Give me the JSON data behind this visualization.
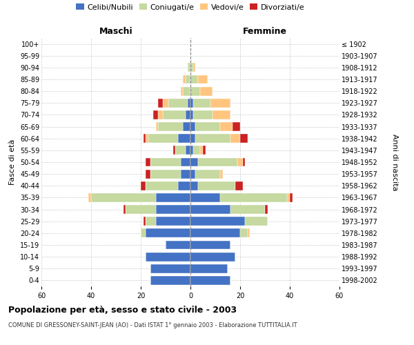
{
  "age_groups": [
    "0-4",
    "5-9",
    "10-14",
    "15-19",
    "20-24",
    "25-29",
    "30-34",
    "35-39",
    "40-44",
    "45-49",
    "50-54",
    "55-59",
    "60-64",
    "65-69",
    "70-74",
    "75-79",
    "80-84",
    "85-89",
    "90-94",
    "95-99",
    "100+"
  ],
  "birth_years": [
    "1998-2002",
    "1993-1997",
    "1988-1992",
    "1983-1987",
    "1978-1982",
    "1973-1977",
    "1968-1972",
    "1963-1967",
    "1958-1962",
    "1953-1957",
    "1948-1952",
    "1943-1947",
    "1938-1942",
    "1933-1937",
    "1928-1932",
    "1923-1927",
    "1918-1922",
    "1913-1917",
    "1908-1912",
    "1903-1907",
    "≤ 1902"
  ],
  "colors": {
    "celibe": "#4472c4",
    "coniugato": "#c5d9a0",
    "vedovo": "#ffc57f",
    "divorziato": "#cc2222"
  },
  "males": {
    "celibe": [
      16,
      16,
      18,
      10,
      18,
      14,
      14,
      14,
      5,
      4,
      4,
      2,
      5,
      3,
      2,
      1,
      0,
      0,
      0,
      0,
      0
    ],
    "coniugato": [
      0,
      0,
      0,
      0,
      2,
      4,
      12,
      26,
      13,
      12,
      12,
      4,
      12,
      10,
      9,
      8,
      3,
      2,
      1,
      0,
      0
    ],
    "vedovo": [
      0,
      0,
      0,
      0,
      0,
      0,
      0,
      1,
      0,
      0,
      0,
      0,
      1,
      1,
      2,
      2,
      1,
      1,
      0,
      0,
      0
    ],
    "divorziato": [
      0,
      0,
      0,
      0,
      0,
      1,
      1,
      0,
      2,
      2,
      2,
      1,
      1,
      0,
      2,
      2,
      0,
      0,
      0,
      0,
      0
    ]
  },
  "females": {
    "nubile": [
      16,
      15,
      18,
      16,
      20,
      22,
      16,
      12,
      3,
      2,
      3,
      1,
      2,
      2,
      1,
      1,
      0,
      0,
      0,
      0,
      0
    ],
    "coniugata": [
      0,
      0,
      0,
      0,
      3,
      9,
      14,
      27,
      15,
      10,
      16,
      3,
      14,
      10,
      8,
      7,
      4,
      3,
      1,
      0,
      0
    ],
    "vedova": [
      0,
      0,
      0,
      0,
      1,
      0,
      0,
      1,
      0,
      1,
      2,
      1,
      4,
      5,
      7,
      8,
      5,
      4,
      1,
      0,
      0
    ],
    "divorziata": [
      0,
      0,
      0,
      0,
      0,
      0,
      1,
      1,
      3,
      0,
      1,
      1,
      3,
      3,
      0,
      0,
      0,
      0,
      0,
      0,
      0
    ]
  },
  "xlim": 60,
  "title": "Popolazione per età, sesso e stato civile - 2003",
  "subtitle": "COMUNE DI GRESSONEY-SAINT-JEAN (AO) - Dati ISTAT 1° gennaio 2003 - Elaborazione TUTTITALIA.IT",
  "maschi_label": "Maschi",
  "femmine_label": "Femmine",
  "fasce_label": "Fasce di età",
  "anni_label": "Anni di nascita",
  "legend_labels": [
    "Celibi/Nubili",
    "Coniugati/e",
    "Vedovi/e",
    "Divorziati/e"
  ],
  "bg_color": "#ffffff",
  "grid_color": "#cccccc"
}
